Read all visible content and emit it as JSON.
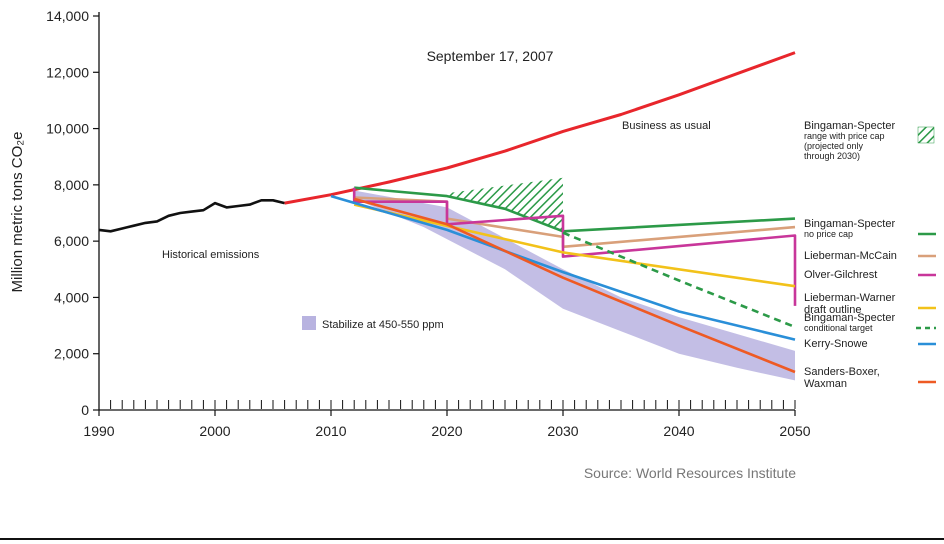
{
  "chart_data": {
    "type": "line",
    "title": "September 17, 2007",
    "ylabel": "Million metric tons CO₂e",
    "xlabel": "",
    "xlim": [
      1990,
      2050
    ],
    "ylim": [
      0,
      14000
    ],
    "x_ticks": [
      "1990",
      "2000",
      "2010",
      "2020",
      "2030",
      "2040",
      "2050"
    ],
    "x_tick_values": [
      1990,
      2000,
      2010,
      2020,
      2030,
      2040,
      2050
    ],
    "y_ticks": [
      "0",
      "2,000",
      "4,000",
      "6,000",
      "8,000",
      "10,000",
      "12,000",
      "14,000"
    ],
    "y_tick_values": [
      0,
      2000,
      4000,
      6000,
      8000,
      10000,
      12000,
      14000
    ],
    "grid": false,
    "legend_placement": "right",
    "source": "Source: World Resources Institute",
    "annotations": {
      "historical": "Historical emissions",
      "bau": "Business as usual",
      "stabilize": "Stabilize at 450-550 ppm"
    },
    "series": [
      {
        "key": "historical",
        "color": "#111111",
        "dashed": false,
        "points": [
          [
            1990,
            6400
          ],
          [
            1991,
            6350
          ],
          [
            1992,
            6450
          ],
          [
            1993,
            6550
          ],
          [
            1994,
            6650
          ],
          [
            1995,
            6700
          ],
          [
            1996,
            6900
          ],
          [
            1997,
            7000
          ],
          [
            1998,
            7050
          ],
          [
            1999,
            7100
          ],
          [
            2000,
            7350
          ],
          [
            2001,
            7200
          ],
          [
            2002,
            7250
          ],
          [
            2003,
            7300
          ],
          [
            2004,
            7450
          ],
          [
            2005,
            7450
          ],
          [
            2006,
            7350
          ]
        ]
      },
      {
        "name": "Business as usual",
        "key": "bau",
        "color": "#e8262c",
        "dashed": false,
        "points": [
          [
            2006,
            7350
          ],
          [
            2010,
            7650
          ],
          [
            2015,
            8100
          ],
          [
            2020,
            8600
          ],
          [
            2025,
            9200
          ],
          [
            2030,
            9900
          ],
          [
            2035,
            10500
          ],
          [
            2040,
            11200
          ],
          [
            2045,
            11950
          ],
          [
            2050,
            12700
          ]
        ]
      },
      {
        "key": "bs_noprice",
        "color": "#2c9a48",
        "dashed": false,
        "points": [
          [
            2012,
            7900
          ],
          [
            2020,
            7600
          ],
          [
            2025,
            7150
          ],
          [
            2030,
            6350
          ],
          [
            2050,
            6800
          ]
        ]
      },
      {
        "key": "lieberman_mccain",
        "color": "#d9a07a",
        "dashed": false,
        "points": [
          [
            2012,
            7550
          ],
          [
            2020,
            7400
          ],
          [
            2020,
            6800
          ],
          [
            2030,
            6150
          ],
          [
            2030,
            5800
          ],
          [
            2050,
            6500
          ]
        ]
      },
      {
        "key": "olver_gilchrest",
        "color": "#c8369a",
        "dashed": false,
        "points": [
          [
            2012,
            7900
          ],
          [
            2012,
            7400
          ],
          [
            2020,
            7400
          ],
          [
            2020,
            6600
          ],
          [
            2030,
            6900
          ],
          [
            2030,
            5450
          ],
          [
            2050,
            6200
          ],
          [
            2050,
            3700
          ]
        ]
      },
      {
        "key": "lieberman_warner",
        "color": "#f2c21a",
        "dashed": false,
        "points": [
          [
            2012,
            7300
          ],
          [
            2030,
            5600
          ],
          [
            2050,
            4400
          ]
        ]
      },
      {
        "key": "bs_conditional",
        "color": "#2c9a48",
        "dashed": true,
        "points": [
          [
            2030,
            6300
          ],
          [
            2040,
            4600
          ],
          [
            2050,
            2950
          ]
        ]
      },
      {
        "key": "kerry_snowe",
        "color": "#2a8fd8",
        "dashed": false,
        "points": [
          [
            2010,
            7600
          ],
          [
            2020,
            6400
          ],
          [
            2030,
            4900
          ],
          [
            2040,
            3500
          ],
          [
            2050,
            2500
          ]
        ]
      },
      {
        "key": "sanders_boxer",
        "color": "#ee5a24",
        "dashed": false,
        "points": [
          [
            2012,
            7500
          ],
          [
            2020,
            6600
          ],
          [
            2030,
            4700
          ],
          [
            2040,
            3000
          ],
          [
            2050,
            1350
          ]
        ]
      }
    ],
    "bands": [
      {
        "key": "stabilize",
        "color": "#b8b3e0",
        "upper": [
          [
            2012,
            7800
          ],
          [
            2020,
            7200
          ],
          [
            2025,
            6100
          ],
          [
            2030,
            5000
          ],
          [
            2035,
            4000
          ],
          [
            2040,
            3300
          ],
          [
            2045,
            2700
          ],
          [
            2050,
            2100
          ]
        ],
        "lower": [
          [
            2012,
            7500
          ],
          [
            2018,
            6500
          ],
          [
            2025,
            5000
          ],
          [
            2030,
            3600
          ],
          [
            2035,
            2800
          ],
          [
            2040,
            2000
          ],
          [
            2045,
            1500
          ],
          [
            2050,
            1050
          ]
        ]
      },
      {
        "key": "bs_pricecap",
        "color": "#2c9a48",
        "hatched": true,
        "upper": [
          [
            2020,
            7700
          ],
          [
            2030,
            8250
          ]
        ],
        "lower": [
          [
            2020,
            7600
          ],
          [
            2025,
            7150
          ],
          [
            2030,
            6350
          ]
        ]
      }
    ],
    "legend": [
      {
        "lines": [
          "Bingaman-Specter",
          "range with price cap",
          "(projected only",
          "through 2030)"
        ],
        "swatch": "hatch",
        "color": "#2c9a48"
      },
      {
        "lines": [
          "Bingaman-Specter",
          "no price cap"
        ],
        "swatch": "line",
        "color": "#2c9a48"
      },
      {
        "lines": [
          "Lieberman-McCain"
        ],
        "swatch": "line",
        "color": "#d9a07a"
      },
      {
        "lines": [
          "Olver-Gilchrest"
        ],
        "swatch": "line",
        "color": "#c8369a"
      },
      {
        "lines": [
          "Lieberman-Warner",
          "draft outline"
        ],
        "swatch": "line",
        "color": "#f2c21a"
      },
      {
        "lines": [
          "Bingaman-Specter",
          "conditional target"
        ],
        "swatch": "dashed",
        "color": "#2c9a48"
      },
      {
        "lines": [
          "Kerry-Snowe"
        ],
        "swatch": "line",
        "color": "#2a8fd8"
      },
      {
        "lines": [
          "Sanders-Boxer,",
          "Waxman"
        ],
        "swatch": "line",
        "color": "#ee5a24"
      }
    ]
  }
}
